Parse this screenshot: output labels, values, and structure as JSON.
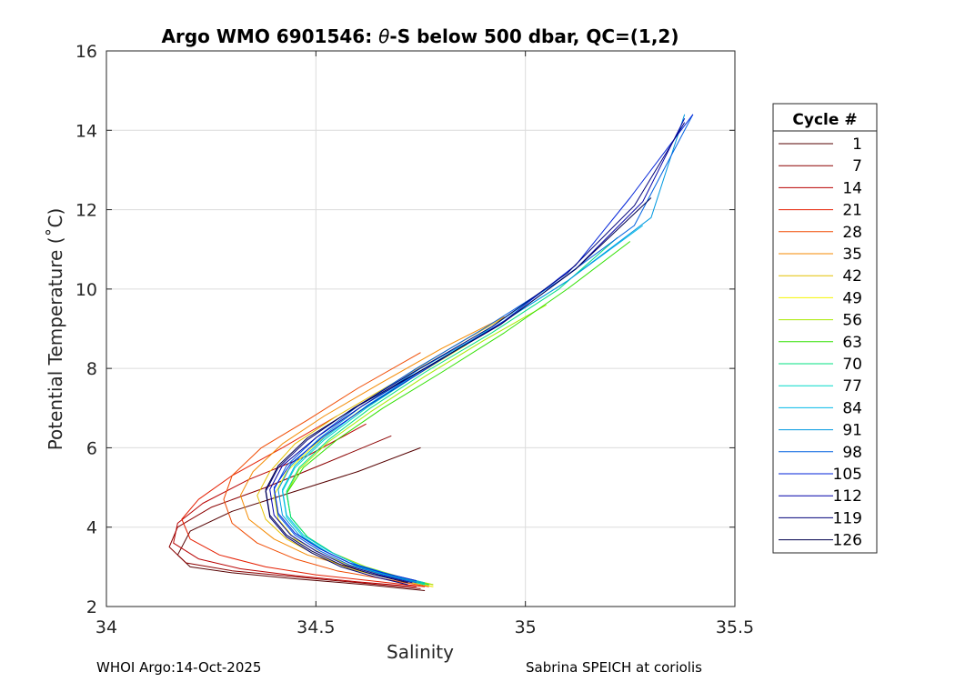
{
  "chart_data": {
    "type": "line",
    "title": "Argo WMO 6901546: θ-S below 500 dbar,  QC=(1,2)",
    "title_parts": {
      "prefix": "Argo WMO 6901546: ",
      "symbol": "θ",
      "suffix": "-S below 500 dbar,  QC=(1,2)"
    },
    "xlabel": "Salinity",
    "ylabel": "Potential Temperature (˚C)",
    "xlim": [
      34,
      35.5
    ],
    "ylim": [
      2,
      16
    ],
    "xticks": [
      34,
      34.5,
      35,
      35.5
    ],
    "xtick_labels": [
      "34",
      "34.5",
      "35",
      "35.5"
    ],
    "yticks": [
      2,
      4,
      6,
      8,
      10,
      12,
      14,
      16
    ],
    "ytick_labels": [
      "2",
      "4",
      "6",
      "8",
      "10",
      "12",
      "14",
      "16"
    ],
    "grid": true,
    "legend": {
      "title": "Cycle #",
      "placement": "right-outside",
      "entries": [
        {
          "label": "1",
          "color": "#550000"
        },
        {
          "label": "7",
          "color": "#8b0000"
        },
        {
          "label": "14",
          "color": "#b80000"
        },
        {
          "label": "21",
          "color": "#e51e00"
        },
        {
          "label": "28",
          "color": "#f04a00"
        },
        {
          "label": "35",
          "color": "#f48a00"
        },
        {
          "label": "42",
          "color": "#e4c000"
        },
        {
          "label": "49",
          "color": "#f4f400"
        },
        {
          "label": "56",
          "color": "#a8ea00"
        },
        {
          "label": "63",
          "color": "#30e000"
        },
        {
          "label": "70",
          "color": "#00e080"
        },
        {
          "label": "77",
          "color": "#00d8c8"
        },
        {
          "label": "84",
          "color": "#00b8e8"
        },
        {
          "label": "91",
          "color": "#0098e0"
        },
        {
          "label": "98",
          "color": "#0060e0"
        },
        {
          "label": "105",
          "color": "#0022d8"
        },
        {
          "label": "112",
          "color": "#0000a8"
        },
        {
          "label": "119",
          "color": "#00007a"
        },
        {
          "label": "126",
          "color": "#00004e"
        }
      ]
    },
    "series": [
      {
        "name": "1",
        "color": "#550000",
        "x": [
          34.76,
          34.62,
          34.45,
          34.3,
          34.2,
          34.17,
          34.2,
          34.3,
          34.45,
          34.6,
          34.75
        ],
        "y": [
          2.4,
          2.55,
          2.7,
          2.85,
          3.0,
          3.3,
          3.9,
          4.4,
          4.9,
          5.4,
          6.0
        ]
      },
      {
        "name": "7",
        "color": "#8b0000",
        "x": [
          34.75,
          34.6,
          34.45,
          34.3,
          34.19,
          34.15,
          34.17,
          34.25,
          34.38,
          34.52,
          34.68
        ],
        "y": [
          2.45,
          2.6,
          2.75,
          2.9,
          3.1,
          3.5,
          4.0,
          4.5,
          5.0,
          5.6,
          6.3
        ]
      },
      {
        "name": "14",
        "color": "#b80000",
        "x": [
          34.74,
          34.6,
          34.45,
          34.32,
          34.22,
          34.16,
          34.17,
          34.23,
          34.34,
          34.48,
          34.62
        ],
        "y": [
          2.5,
          2.62,
          2.78,
          2.95,
          3.2,
          3.6,
          4.1,
          4.6,
          5.2,
          5.8,
          6.6
        ]
      },
      {
        "name": "21",
        "color": "#e51e00",
        "x": [
          34.76,
          34.63,
          34.5,
          34.38,
          34.27,
          34.2,
          34.18,
          34.22,
          34.3,
          34.42,
          34.55
        ],
        "y": [
          2.5,
          2.65,
          2.8,
          3.0,
          3.3,
          3.7,
          4.2,
          4.7,
          5.3,
          6.0,
          6.8
        ]
      },
      {
        "name": "28",
        "color": "#f04a00",
        "x": [
          34.77,
          34.66,
          34.55,
          34.45,
          34.36,
          34.3,
          34.28,
          34.3,
          34.37,
          34.48,
          34.6,
          34.75
        ],
        "y": [
          2.5,
          2.7,
          2.9,
          3.2,
          3.6,
          4.1,
          4.7,
          5.3,
          6.0,
          6.7,
          7.5,
          8.4
        ]
      },
      {
        "name": "35",
        "color": "#f48a00",
        "x": [
          34.78,
          34.68,
          34.58,
          34.48,
          34.4,
          34.34,
          34.32,
          34.35,
          34.42,
          34.52,
          34.65,
          34.8,
          34.95
        ],
        "y": [
          2.55,
          2.75,
          3.0,
          3.3,
          3.7,
          4.2,
          4.8,
          5.4,
          6.1,
          6.8,
          7.6,
          8.5,
          9.3
        ]
      },
      {
        "name": "42",
        "color": "#e4c000",
        "x": [
          34.78,
          34.68,
          34.58,
          34.5,
          34.43,
          34.38,
          34.36,
          34.39,
          34.45,
          34.55,
          34.68,
          34.82,
          34.97
        ],
        "y": [
          2.5,
          2.7,
          2.95,
          3.3,
          3.7,
          4.2,
          4.8,
          5.4,
          6.1,
          6.8,
          7.6,
          8.5,
          9.4
        ]
      },
      {
        "name": "49",
        "color": "#f4f400",
        "x": [
          34.78,
          34.7,
          34.6,
          34.52,
          34.45,
          34.41,
          34.4,
          34.43,
          34.5,
          34.6,
          34.72,
          34.86
        ],
        "y": [
          2.5,
          2.7,
          2.95,
          3.3,
          3.7,
          4.2,
          4.8,
          5.4,
          6.1,
          6.9,
          7.7,
          8.6
        ]
      },
      {
        "name": "56",
        "color": "#a8ea00",
        "x": [
          34.78,
          34.7,
          34.62,
          34.54,
          34.48,
          34.44,
          34.43,
          34.46,
          34.53,
          34.63,
          34.76,
          34.9,
          35.05
        ],
        "y": [
          2.55,
          2.75,
          3.0,
          3.35,
          3.75,
          4.25,
          4.85,
          5.45,
          6.15,
          6.9,
          7.8,
          8.7,
          9.6
        ]
      },
      {
        "name": "63",
        "color": "#30e000",
        "x": [
          34.77,
          34.69,
          34.61,
          34.54,
          34.48,
          34.44,
          34.43,
          34.47,
          34.55,
          34.66,
          34.8,
          34.95,
          35.1,
          35.25
        ],
        "y": [
          2.55,
          2.75,
          3.0,
          3.35,
          3.75,
          4.25,
          4.85,
          5.5,
          6.2,
          7.0,
          7.9,
          8.9,
          10.0,
          11.2
        ]
      },
      {
        "name": "70",
        "color": "#00e080",
        "x": [
          34.77,
          34.69,
          34.61,
          34.54,
          34.48,
          34.44,
          34.43,
          34.46,
          34.53,
          34.63,
          34.76,
          34.92,
          35.08,
          35.22
        ],
        "y": [
          2.55,
          2.75,
          3.0,
          3.35,
          3.75,
          4.25,
          4.9,
          5.5,
          6.2,
          7.0,
          7.9,
          8.9,
          10.0,
          11.3
        ]
      },
      {
        "name": "77",
        "color": "#00d8c8",
        "x": [
          34.76,
          34.68,
          34.6,
          34.53,
          34.47,
          34.43,
          34.42,
          34.45,
          34.52,
          34.62,
          34.75,
          34.9,
          35.05
        ],
        "y": [
          2.55,
          2.75,
          3.0,
          3.35,
          3.75,
          4.25,
          4.9,
          5.5,
          6.2,
          7.0,
          7.9,
          8.9,
          10.0
        ]
      },
      {
        "name": "84",
        "color": "#00b8e8",
        "x": [
          34.76,
          34.68,
          34.6,
          34.53,
          34.47,
          34.43,
          34.42,
          34.45,
          34.52,
          34.62,
          34.76,
          34.92,
          35.1,
          35.28
        ],
        "y": [
          2.6,
          2.8,
          3.05,
          3.4,
          3.8,
          4.3,
          4.95,
          5.55,
          6.25,
          7.05,
          8.0,
          9.0,
          10.2,
          11.6
        ]
      },
      {
        "name": "91",
        "color": "#0098e0",
        "x": [
          34.75,
          34.67,
          34.59,
          34.52,
          34.46,
          34.42,
          34.41,
          34.44,
          34.51,
          34.61,
          34.75,
          34.92,
          35.1,
          35.3,
          35.38
        ],
        "y": [
          2.6,
          2.8,
          3.05,
          3.4,
          3.8,
          4.3,
          4.95,
          5.55,
          6.25,
          7.05,
          8.0,
          9.0,
          10.2,
          11.8,
          14.4
        ]
      },
      {
        "name": "98",
        "color": "#0060e0",
        "x": [
          34.74,
          34.66,
          34.58,
          34.51,
          34.45,
          34.41,
          34.4,
          34.43,
          34.5,
          34.6,
          34.74,
          34.9,
          35.08,
          35.26,
          35.4
        ],
        "y": [
          2.6,
          2.8,
          3.05,
          3.4,
          3.8,
          4.3,
          4.95,
          5.55,
          6.25,
          7.05,
          8.0,
          9.0,
          10.2,
          11.6,
          14.4
        ]
      },
      {
        "name": "105",
        "color": "#0022d8",
        "x": [
          34.74,
          34.66,
          34.58,
          34.51,
          34.45,
          34.41,
          34.4,
          34.44,
          34.52,
          34.63,
          34.78,
          34.95,
          35.12,
          35.25,
          35.4
        ],
        "y": [
          2.65,
          2.85,
          3.1,
          3.45,
          3.85,
          4.35,
          5.0,
          5.6,
          6.3,
          7.1,
          8.1,
          9.2,
          10.6,
          12.3,
          14.4
        ]
      },
      {
        "name": "112",
        "color": "#0000a8",
        "x": [
          34.73,
          34.65,
          34.57,
          34.5,
          34.44,
          34.4,
          34.39,
          34.42,
          34.5,
          34.61,
          34.76,
          34.94,
          35.12,
          35.28,
          35.38
        ],
        "y": [
          2.6,
          2.8,
          3.05,
          3.4,
          3.8,
          4.3,
          4.95,
          5.55,
          6.25,
          7.05,
          8.0,
          9.1,
          10.5,
          12.2,
          14.3
        ]
      },
      {
        "name": "119",
        "color": "#00007a",
        "x": [
          34.72,
          34.64,
          34.56,
          34.49,
          34.43,
          34.39,
          34.38,
          34.41,
          34.48,
          34.59,
          34.74,
          34.92,
          35.1,
          35.26,
          35.38
        ],
        "y": [
          2.55,
          2.75,
          3.0,
          3.35,
          3.75,
          4.25,
          4.9,
          5.5,
          6.2,
          7.0,
          7.95,
          9.05,
          10.4,
          12.1,
          14.2
        ]
      },
      {
        "name": "126",
        "color": "#00004e",
        "x": [
          34.72,
          34.64,
          34.56,
          34.49,
          34.43,
          34.39,
          34.38,
          34.41,
          34.48,
          34.6,
          34.76,
          34.94,
          35.12,
          35.3
        ],
        "y": [
          2.6,
          2.8,
          3.05,
          3.4,
          3.8,
          4.3,
          4.95,
          5.55,
          6.25,
          7.05,
          8.0,
          9.1,
          10.5,
          12.3
        ]
      }
    ]
  },
  "footer": {
    "left": "WHOI Argo:14-Oct-2025",
    "right": "Sabrina SPEICH at coriolis"
  }
}
